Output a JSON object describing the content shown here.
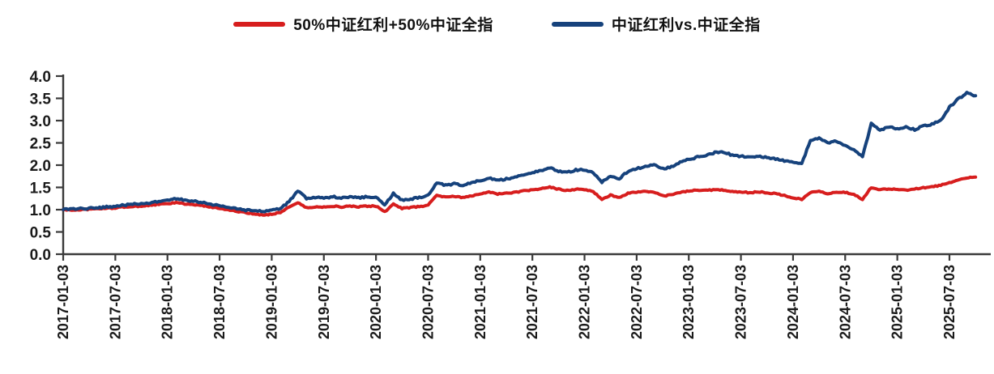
{
  "legend": {
    "items": [
      {
        "label": "50%中证红利+50%中证全指",
        "color": "#d71e1e"
      },
      {
        "label": "中证红利vs.中证全指",
        "color": "#16427c"
      }
    ]
  },
  "chart_data": {
    "type": "line",
    "title": "",
    "xlabel": "",
    "ylabel": "",
    "grid": false,
    "legend_position": "top-center",
    "background_color": "#ffffff",
    "axis_color": "#3a3a3a",
    "x_axis": {
      "start_date": "2017-01-03",
      "tick_interval_months": 6,
      "tick_labels": [
        "2017-01-03",
        "2017-07-03",
        "2018-01-03",
        "2018-07-03",
        "2019-01-03",
        "2019-07-03",
        "2020-01-03",
        "2020-07-03",
        "2021-01-03",
        "2021-07-03",
        "2022-01-03",
        "2022-07-03",
        "2023-01-03",
        "2023-07-03",
        "2024-01-03",
        "2024-07-03",
        "2025-01-03",
        "2025-07-03"
      ],
      "label_rotation_deg": 90
    },
    "y_axis": {
      "min": 0.0,
      "max": 4.0,
      "step": 0.5,
      "tick_labels": [
        "0.0",
        "0.5",
        "1.0",
        "1.5",
        "2.0",
        "2.5",
        "3.0",
        "3.5",
        "4.0"
      ]
    },
    "series": [
      {
        "name": "50%中证红利+50%中证全指",
        "color": "#d71e1e",
        "jitter": 0.012,
        "resolution": "monthly, index 0 = 2017-01",
        "monthly_values": [
          1.0,
          0.99,
          1.0,
          1.01,
          1.02,
          1.03,
          1.04,
          1.06,
          1.07,
          1.08,
          1.1,
          1.12,
          1.13,
          1.16,
          1.13,
          1.11,
          1.09,
          1.06,
          1.03,
          1.0,
          0.96,
          0.93,
          0.9,
          0.88,
          0.9,
          0.94,
          1.06,
          1.16,
          1.04,
          1.06,
          1.06,
          1.08,
          1.06,
          1.08,
          1.06,
          1.08,
          1.08,
          0.95,
          1.12,
          1.03,
          1.05,
          1.07,
          1.1,
          1.33,
          1.28,
          1.3,
          1.27,
          1.31,
          1.36,
          1.4,
          1.35,
          1.37,
          1.39,
          1.42,
          1.44,
          1.47,
          1.51,
          1.46,
          1.43,
          1.46,
          1.45,
          1.41,
          1.22,
          1.33,
          1.27,
          1.37,
          1.39,
          1.41,
          1.39,
          1.31,
          1.33,
          1.39,
          1.42,
          1.44,
          1.43,
          1.45,
          1.44,
          1.41,
          1.4,
          1.38,
          1.4,
          1.38,
          1.36,
          1.32,
          1.27,
          1.23,
          1.39,
          1.41,
          1.36,
          1.4,
          1.39,
          1.34,
          1.23,
          1.5,
          1.45,
          1.47,
          1.46,
          1.44,
          1.47,
          1.49,
          1.51,
          1.55,
          1.61,
          1.66,
          1.71,
          1.73
        ]
      },
      {
        "name": "中证红利vs.中证全指",
        "color": "#16427c",
        "jitter": 0.018,
        "resolution": "monthly, index 0 = 2017-01",
        "monthly_values": [
          1.0,
          1.01,
          1.02,
          1.03,
          1.04,
          1.06,
          1.08,
          1.1,
          1.12,
          1.13,
          1.15,
          1.18,
          1.21,
          1.25,
          1.22,
          1.19,
          1.16,
          1.12,
          1.09,
          1.05,
          1.02,
          0.99,
          0.97,
          0.96,
          0.99,
          1.03,
          1.18,
          1.42,
          1.25,
          1.27,
          1.26,
          1.29,
          1.27,
          1.29,
          1.27,
          1.29,
          1.28,
          1.1,
          1.36,
          1.21,
          1.24,
          1.27,
          1.32,
          1.6,
          1.55,
          1.58,
          1.55,
          1.61,
          1.66,
          1.71,
          1.66,
          1.69,
          1.73,
          1.79,
          1.83,
          1.88,
          1.94,
          1.87,
          1.84,
          1.89,
          1.9,
          1.84,
          1.62,
          1.76,
          1.7,
          1.86,
          1.92,
          1.97,
          2.0,
          1.92,
          1.96,
          2.06,
          2.13,
          2.18,
          2.22,
          2.28,
          2.3,
          2.22,
          2.2,
          2.17,
          2.21,
          2.17,
          2.14,
          2.1,
          2.06,
          2.03,
          2.56,
          2.6,
          2.49,
          2.54,
          2.44,
          2.34,
          2.2,
          2.93,
          2.78,
          2.86,
          2.82,
          2.86,
          2.8,
          2.88,
          2.92,
          3.0,
          3.3,
          3.48,
          3.62,
          3.56
        ]
      }
    ]
  }
}
